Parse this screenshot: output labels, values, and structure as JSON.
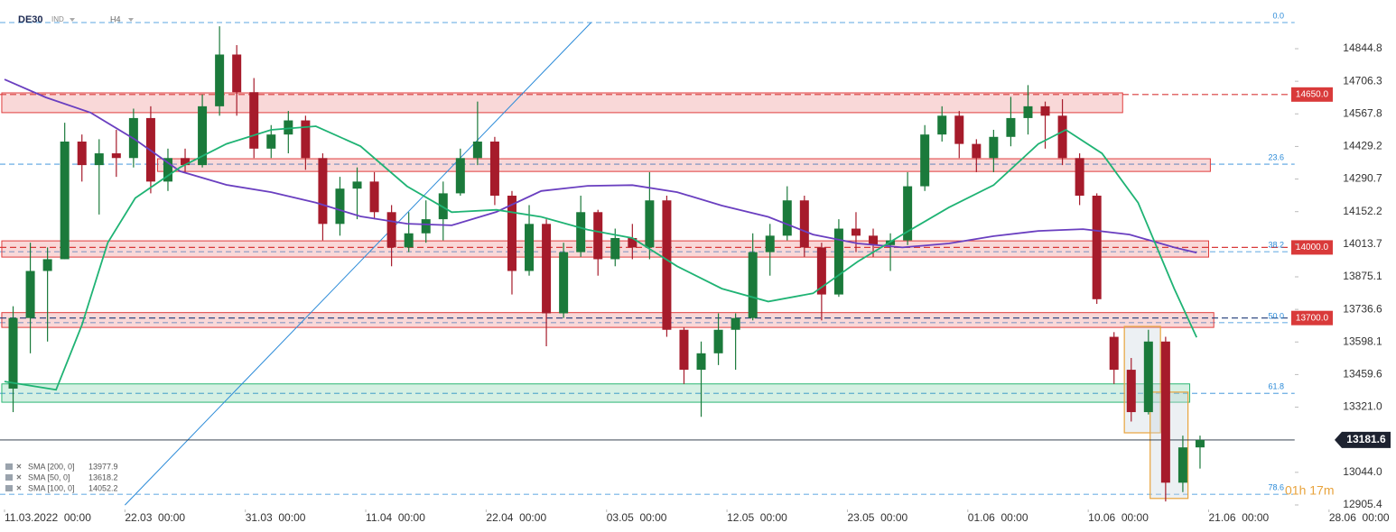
{
  "chart_data": {
    "type": "candlestick",
    "symbol": "DE30",
    "instrument_type": "IND",
    "interval": "H4",
    "timer": "01h 17m",
    "xlim": [
      0,
      75
    ],
    "ylim": [
      12886.2,
      15051.8
    ],
    "xticks": [
      {
        "value": 0,
        "label": "11.03.2022  00:00"
      },
      {
        "value": 7,
        "label": "22.03  00:00"
      },
      {
        "value": 14,
        "label": "31.03  00:00"
      },
      {
        "value": 21,
        "label": "11.04  00:00"
      },
      {
        "value": 28,
        "label": "22.04  00:00"
      },
      {
        "value": 35,
        "label": "03.05  00:00"
      },
      {
        "value": 42,
        "label": "12.05  00:00"
      },
      {
        "value": 49,
        "label": "23.05  00:00"
      },
      {
        "value": 56,
        "label": "01.06  00:00"
      },
      {
        "value": 63,
        "label": "10.06  00:00"
      },
      {
        "value": 70,
        "label": "21.06  00:00"
      },
      {
        "value": 77,
        "label": "28.06  00:00"
      }
    ],
    "yticks": [
      14844.8,
      14706.3,
      14567.8,
      14429.2,
      14290.7,
      14152.2,
      14013.7,
      13875.1,
      13736.6,
      13598.1,
      13459.6,
      {
        "value": 13321,
        "label": "13321.0"
      },
      {
        "value": 13044,
        "label": "13044.0"
      },
      12905.4
    ],
    "up_color": "#1b7a3b",
    "down_color": "#a61b2b",
    "x": [
      0.5,
      1.5,
      2.5,
      3.5,
      4.5,
      5.5,
      6.5,
      7.5,
      8.5,
      9.5,
      10.5,
      11.5,
      12.5,
      13.5,
      14.5,
      15.5,
      16.5,
      17.5,
      18.5,
      19.5,
      20.5,
      21.5,
      22.5,
      23.5,
      24.5,
      25.5,
      26.5,
      27.5,
      28.5,
      29.5,
      30.5,
      31.5,
      32.5,
      33.5,
      34.5,
      35.5,
      36.5,
      37.5,
      38.5,
      39.5,
      40.5,
      41.5,
      42.5,
      43.5,
      44.5,
      45.5,
      46.5,
      47.5,
      48.5,
      49.5,
      50.5,
      51.5,
      52.5,
      53.5,
      54.5,
      55.5,
      56.5,
      57.5,
      58.5,
      59.5,
      60.5,
      61.5,
      62.5,
      63.5,
      64.5,
      65.5,
      66.5,
      67.5,
      68.5,
      69.5
    ],
    "open": [
      13400,
      13700,
      13900,
      13950,
      14450,
      14350,
      14400,
      14380,
      14550,
      14280,
      14380,
      14350,
      14600,
      14820,
      14660,
      14420,
      14480,
      14540,
      14380,
      14100,
      14250,
      14280,
      14150,
      14000,
      14060,
      14120,
      14230,
      14380,
      14450,
      14220,
      13900,
      14100,
      13720,
      13980,
      14150,
      13950,
      14040,
      14000,
      14200,
      13650,
      13480,
      13550,
      13650,
      13700,
      13980,
      14050,
      14200,
      14000,
      13800,
      14080,
      14050,
      14010,
      14030,
      14260,
      14480,
      14560,
      14440,
      14380,
      14470,
      14550,
      14600,
      14560,
      14380,
      14220,
      13620,
      13480,
      13300,
      13600,
      13000,
      13150
    ],
    "high": [
      13750,
      14020,
      14000,
      14530,
      14480,
      14460,
      14500,
      14590,
      14600,
      14420,
      14420,
      14650,
      14940,
      14860,
      14720,
      14520,
      14580,
      14560,
      14400,
      14300,
      14340,
      14320,
      14180,
      14150,
      14200,
      14280,
      14420,
      14620,
      14470,
      14240,
      14180,
      14120,
      14020,
      14220,
      14160,
      14080,
      14100,
      14320,
      14220,
      13660,
      13600,
      13720,
      13720,
      14060,
      14100,
      14260,
      14220,
      14020,
      14120,
      14150,
      14080,
      14060,
      14320,
      14520,
      14600,
      14580,
      14460,
      14500,
      14640,
      14690,
      14620,
      14630,
      14400,
      14230,
      13640,
      13530,
      13650,
      13620,
      13200,
      13200
    ],
    "low": [
      13300,
      13550,
      13600,
      13950,
      14280,
      14140,
      14300,
      14340,
      14230,
      14240,
      14320,
      14340,
      14560,
      14560,
      14380,
      14380,
      14400,
      14330,
      14030,
      14050,
      14120,
      14120,
      13920,
      13980,
      14020,
      14030,
      14220,
      14350,
      14180,
      13800,
      13880,
      13580,
      13700,
      13960,
      13880,
      13920,
      13950,
      13950,
      13620,
      13420,
      13280,
      13500,
      13480,
      13690,
      13880,
      14030,
      13960,
      13690,
      13790,
      13980,
      13960,
      13900,
      14010,
      14240,
      14450,
      14380,
      14320,
      14320,
      14430,
      14480,
      14420,
      14350,
      14180,
      13760,
      13420,
      13260,
      13290,
      12920,
      12960,
      13060
    ],
    "close": [
      13700,
      13900,
      13950,
      14450,
      14350,
      14400,
      14380,
      14550,
      14280,
      14380,
      14350,
      14600,
      14820,
      14660,
      14420,
      14480,
      14540,
      14380,
      14100,
      14250,
      14280,
      14150,
      14000,
      14060,
      14120,
      14230,
      14380,
      14450,
      14220,
      13900,
      14100,
      13720,
      13980,
      14150,
      13950,
      14040,
      14000,
      14200,
      13650,
      13480,
      13550,
      13650,
      13700,
      13980,
      14050,
      14200,
      14000,
      13800,
      14080,
      14050,
      14010,
      14030,
      14260,
      14480,
      14560,
      14440,
      14380,
      14470,
      14550,
      14600,
      14560,
      14380,
      14220,
      13780,
      13480,
      13300,
      13600,
      13000,
      13150,
      13181.6
    ],
    "last_price": 13181.6,
    "lines": [
      {
        "name": "SMA [200, 0]",
        "value": 13977.9,
        "color": "#6a3fc0",
        "x": [
          0,
          2.4,
          5,
          7.6,
          10.2,
          12.9,
          15.5,
          18.1,
          20.7,
          23.4,
          26,
          28.6,
          31.2,
          33.9,
          36.5,
          39.1,
          41.7,
          44.4,
          47,
          49.6,
          52.2,
          54.9,
          57.5,
          60.1,
          62.7,
          65.4,
          68,
          69.3
        ],
        "values": [
          14714,
          14638,
          14573,
          14458,
          14324,
          14266,
          14235,
          14190,
          14132,
          14101,
          14094,
          14151,
          14240,
          14262,
          14265,
          14235,
          14178,
          14130,
          14055,
          14017,
          14000,
          14017,
          14048,
          14070,
          14078,
          14055,
          14000,
          13978
        ]
      },
      {
        "name": "SMA [50, 0]",
        "value": 13618.2,
        "color": "#1fb374",
        "x": [
          0,
          3,
          4.5,
          6,
          7.6,
          10.2,
          12.9,
          15.5,
          18.1,
          20.7,
          23.4,
          26,
          28.6,
          31.2,
          33.9,
          36.5,
          39.1,
          41.7,
          44.4,
          47,
          49.6,
          52.2,
          54.9,
          57.5,
          60.1,
          61.7,
          63.8,
          65.9,
          68,
          69.3
        ],
        "values": [
          13430,
          13395,
          13670,
          14020,
          14210,
          14340,
          14440,
          14500,
          14515,
          14430,
          14260,
          14150,
          14160,
          14130,
          14075,
          14040,
          13920,
          13825,
          13770,
          13805,
          13940,
          14055,
          14170,
          14265,
          14440,
          14500,
          14400,
          14190,
          13825,
          13618
        ]
      },
      {
        "name": "SMA [100, 0]",
        "value": 14052.2
      }
    ],
    "zones": [
      {
        "from": 14573,
        "to": 14657,
        "x": [
          -0.16,
          65
        ],
        "color": "#e03c3c"
      },
      {
        "from": 14323,
        "to": 14377,
        "x": [
          8.9,
          70.1
        ],
        "color": "#e03c3c"
      },
      {
        "from": 13959,
        "to": 14028,
        "x": [
          -0.16,
          70
        ],
        "color": "#e03c3c"
      },
      {
        "from": 13660,
        "to": 13723,
        "x": [
          -0.16,
          70.3
        ],
        "color": "#e03c3c"
      },
      {
        "from": 13342,
        "to": 13420,
        "x": [
          -0.16,
          68.9
        ],
        "color": "#2bb673"
      }
    ],
    "boxes": [
      {
        "from": 13212,
        "to": 13664,
        "x": [
          65.1,
          67.2
        ],
        "color": "#e8a33c"
      },
      {
        "from": 12933,
        "to": 13385,
        "x": [
          66.6,
          68.8
        ],
        "color": "#e8a33c"
      }
    ],
    "levels": [
      {
        "value": 14650,
        "label": "14650.0",
        "color": "#d93a3a"
      },
      {
        "value": 14000,
        "label": "14000.0",
        "color": "#d93a3a"
      },
      {
        "value": 13700,
        "label": "13700.0",
        "color": "#1e3a78"
      }
    ],
    "fib": [
      {
        "label": "0.0",
        "value": 14956
      },
      {
        "label": "23.6",
        "value": 14354
      },
      {
        "label": "38.2",
        "value": 13982
      },
      {
        "label": "50.0",
        "value": 13680
      },
      {
        "label": "61.8",
        "value": 13380
      },
      {
        "label": "78.6",
        "value": 12951
      }
    ],
    "fib_color": "#2a8ad8",
    "trendline": {
      "x": [
        7,
        34.1
      ],
      "values": [
        12905,
        14956
      ],
      "color": "#2a8ad8"
    }
  }
}
